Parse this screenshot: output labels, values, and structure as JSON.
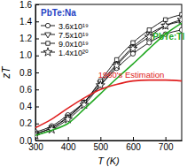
{
  "chart_data": {
    "type": "line",
    "x_label": "T (K)",
    "y_label": "zT",
    "legend_title": "PbTe:Na",
    "x": [
      300,
      350,
      400,
      450,
      500,
      550,
      600,
      650,
      700,
      750
    ],
    "xlim": [
      300,
      750
    ],
    "xticks": [
      300,
      400,
      500,
      600,
      700
    ],
    "ylim": [
      0,
      1.6
    ],
    "yticks": [
      {
        "value": 0,
        "label": "0.0"
      },
      0.2,
      0.4,
      0.6,
      0.8,
      {
        "value": 1,
        "label": "1.0"
      },
      1.2,
      1.4,
      1.6
    ],
    "legend": "upper left",
    "series": [
      {
        "name": "3.6x10¹⁹",
        "color": "#000000",
        "marker": "circle",
        "line_style": "solid",
        "values": [
          0.1,
          0.17,
          0.3,
          0.45,
          0.65,
          0.85,
          1.02,
          1.15,
          1.25,
          1.3
        ]
      },
      {
        "name": "7.5x10¹⁹",
        "color": "#000000",
        "marker": "triangle-down",
        "line_style": "solid",
        "values": [
          0.08,
          0.15,
          0.28,
          0.45,
          0.68,
          0.9,
          1.1,
          1.25,
          1.35,
          1.4
        ]
      },
      {
        "name": "9.0x10¹⁹",
        "color": "#000000",
        "marker": "square",
        "line_style": "solid",
        "values": [
          0.08,
          0.15,
          0.27,
          0.45,
          0.7,
          0.95,
          1.15,
          1.3,
          1.42,
          1.48
        ]
      },
      {
        "name": "1.4x10²⁰",
        "color": "#000000",
        "marker": "star",
        "line_style": "solid",
        "values": [
          0.06,
          0.13,
          0.25,
          0.42,
          0.65,
          0.88,
          1.08,
          1.22,
          1.35,
          1.42
        ]
      },
      {
        "name": "PbTe:Tl",
        "color": "#22a822",
        "marker": "none",
        "line_style": "solid",
        "values": [
          0.06,
          0.12,
          0.2,
          0.37,
          0.55,
          0.73,
          0.9,
          1.08,
          1.25,
          1.38
        ]
      },
      {
        "name": "1960's Estimation",
        "color": "#e02020",
        "marker": "none",
        "line_style": "solid",
        "values": [
          0.15,
          0.25,
          0.38,
          0.5,
          0.6,
          0.66,
          0.7,
          0.71,
          0.71,
          0.7
        ]
      }
    ]
  }
}
